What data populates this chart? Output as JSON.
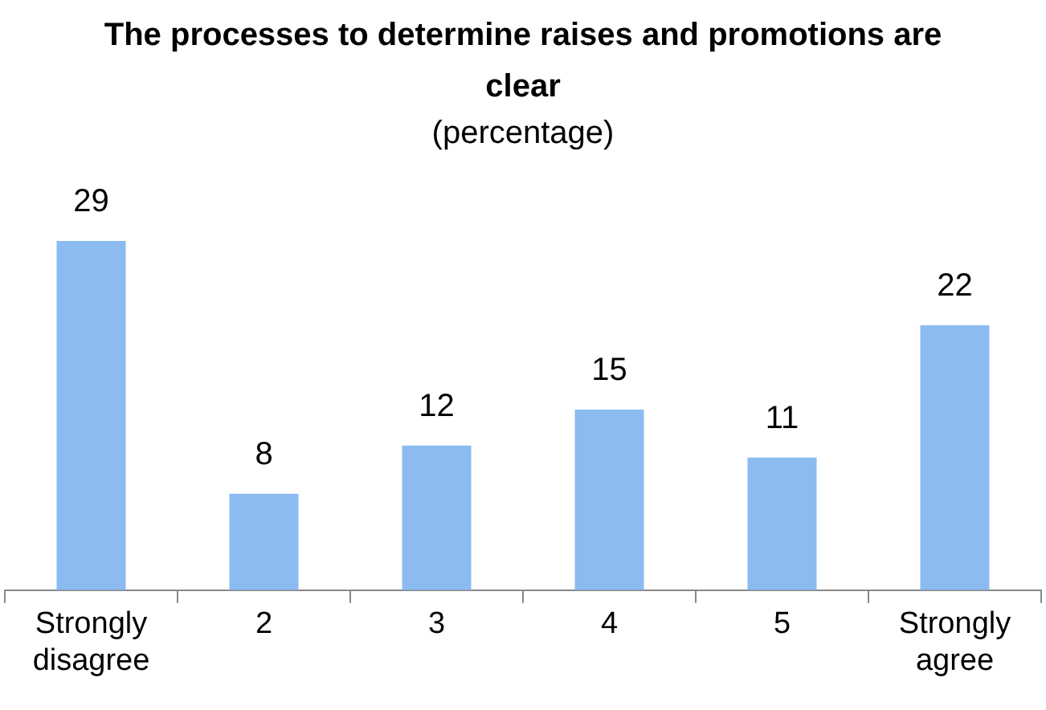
{
  "chart_data": {
    "type": "bar",
    "title": "The processes to determine raises and promotions are clear",
    "subtitle": "(percentage)",
    "categories": [
      "Strongly disagree",
      "2",
      "3",
      "4",
      "5",
      "Strongly agree"
    ],
    "values": [
      29,
      8,
      12,
      15,
      11,
      22
    ],
    "color": "#8bbbf0",
    "data_labels": true,
    "grid": false,
    "legend": false
  }
}
